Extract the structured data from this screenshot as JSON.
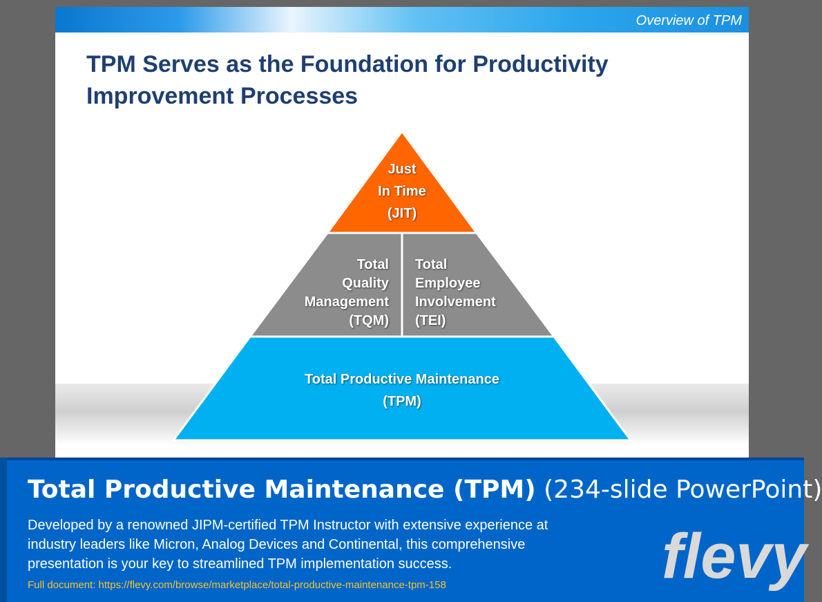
{
  "slide": {
    "section_label": "Overview of TPM",
    "title": "TPM Serves as the Foundation for Productivity Improvement Processes",
    "pyramid": {
      "top": {
        "lines": [
          "Just",
          "In Time",
          "(JIT)"
        ],
        "color": "#ff6600"
      },
      "middle_left": {
        "lines": [
          "Total",
          "Quality",
          "Management",
          "(TQM)"
        ],
        "color": "#8c8c8c"
      },
      "middle_right": {
        "lines": [
          "Total",
          "Employee",
          "Involvement",
          "(TEI)"
        ],
        "color": "#8c8c8c"
      },
      "base": {
        "lines": [
          "Total Productive Maintenance",
          "(TPM)"
        ],
        "color": "#00b0f0"
      }
    }
  },
  "footer": {
    "title_bold": "Total Productive Maintenance (TPM)",
    "title_suffix": "(234-slide PowerPoint)",
    "description": "Developed by a renowned JIPM-certified TPM Instructor with extensive experience at industry leaders like Micron, Analog Devices and Continental, this comprehensive presentation is your key to streamlined TPM implementation success.",
    "link": "Full document: https://flevy.com/browse/marketplace/total-productive-maintenance-tpm-158",
    "logo_text": "flevy"
  }
}
